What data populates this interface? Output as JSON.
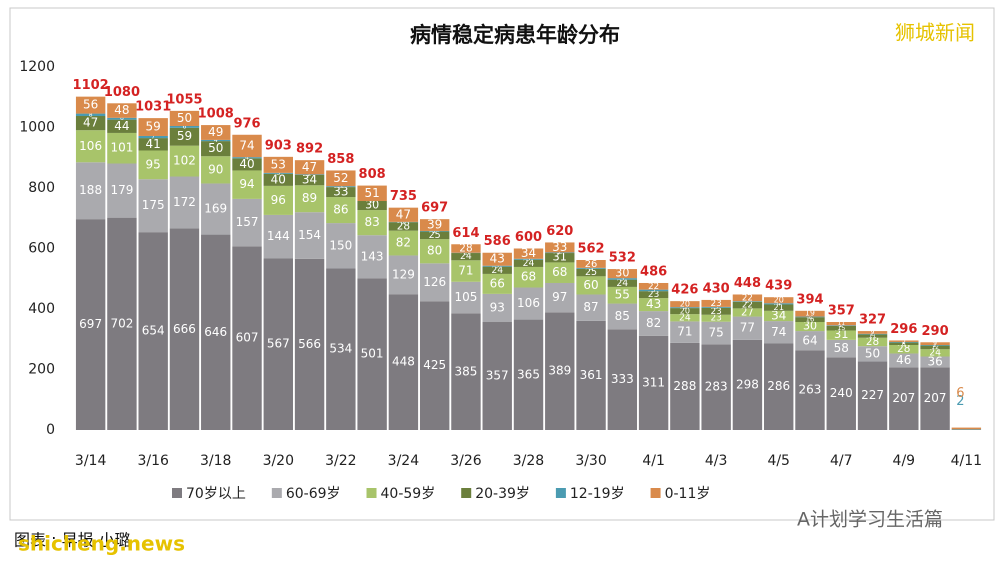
{
  "chart_data": {
    "type": "stacked_bar",
    "title": "病情稳定病患年龄分布",
    "categories": [
      "3/14",
      null,
      "3/16",
      null,
      "3/18",
      null,
      "3/20",
      null,
      "3/22",
      null,
      "3/24",
      null,
      "3/26",
      null,
      "3/28",
      null,
      "3/30",
      null,
      "4/1",
      null,
      "4/3",
      null,
      "4/5",
      null,
      "4/7",
      null,
      "4/9",
      null,
      "4/11"
    ],
    "series": [
      {
        "name": "70岁以上",
        "color": "#7e7b80",
        "values": [
          697,
          702,
          654,
          666,
          646,
          607,
          567,
          566,
          534,
          501,
          448,
          425,
          385,
          357,
          365,
          389,
          361,
          333,
          311,
          288,
          283,
          298,
          286,
          263,
          240,
          227,
          207,
          207,
          null
        ]
      },
      {
        "name": "60-69岁",
        "color": "#aaaaae",
        "values": [
          188,
          179,
          175,
          172,
          169,
          157,
          144,
          154,
          150,
          143,
          129,
          126,
          105,
          93,
          106,
          97,
          87,
          85,
          82,
          71,
          75,
          77,
          74,
          64,
          58,
          50,
          46,
          36,
          null
        ]
      },
      {
        "name": "40-59岁",
        "color": "#a8c46a",
        "values": [
          106,
          101,
          95,
          102,
          90,
          94,
          96,
          89,
          86,
          83,
          82,
          80,
          71,
          66,
          68,
          68,
          60,
          55,
          43,
          24,
          23,
          27,
          34,
          30,
          31,
          28,
          28,
          24,
          null
        ]
      },
      {
        "name": "20-39岁",
        "color": "#6b7f3c",
        "values": [
          47,
          44,
          41,
          59,
          50,
          40,
          40,
          34,
          33,
          30,
          28,
          25,
          24,
          24,
          24,
          31,
          25,
          24,
          23,
          20,
          23,
          22,
          21,
          16,
          15,
          11,
          8,
          12,
          null
        ]
      },
      {
        "name": "12-19岁",
        "color": "#4b9bb1",
        "values": [
          8,
          6,
          7,
          6,
          4,
          4,
          3,
          2,
          3,
          0,
          1,
          2,
          1,
          3,
          3,
          2,
          3,
          5,
          5,
          3,
          3,
          2,
          4,
          2,
          2,
          2,
          2,
          2,
          2
        ]
      },
      {
        "name": "0-11岁",
        "color": "#d98a4b",
        "values": [
          56,
          48,
          59,
          50,
          49,
          74,
          53,
          47,
          52,
          51,
          47,
          39,
          28,
          43,
          34,
          33,
          26,
          30,
          22,
          20,
          23,
          22,
          20,
          19,
          11,
          9,
          5,
          9,
          6
        ]
      }
    ],
    "totals": [
      1102,
      1080,
      1031,
      1055,
      1008,
      976,
      903,
      892,
      858,
      808,
      735,
      697,
      614,
      586,
      600,
      620,
      562,
      532,
      486,
      426,
      430,
      448,
      439,
      394,
      357,
      327,
      296,
      290,
      null
    ],
    "total_color": "#d42222",
    "ylim": [
      0,
      1200
    ],
    "yticks": [
      0,
      200,
      400,
      600,
      800,
      1000,
      1200
    ],
    "grid": false,
    "legend": "bottom"
  },
  "watermarks": {
    "brand": "狮城新闻",
    "credit": "图表 : 早报 小璐",
    "site": "shicheng.news",
    "account": "A计划学习生活篇"
  }
}
